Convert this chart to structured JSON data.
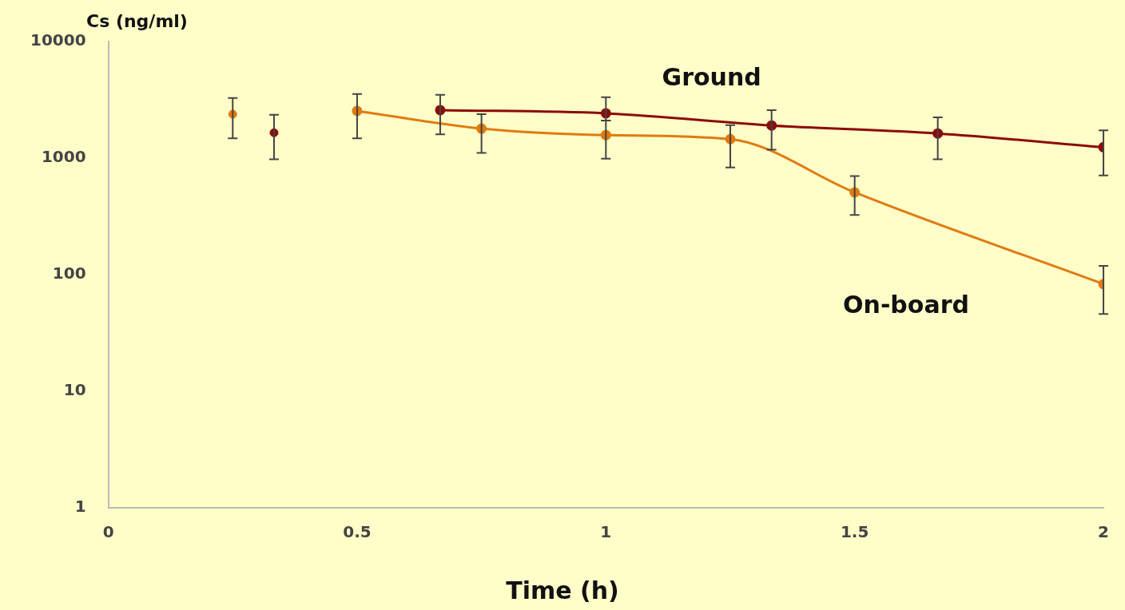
{
  "chart_data": {
    "type": "line",
    "xlabel": "Time (h)",
    "ylabel": "Cs (ng/ml)",
    "xlim": [
      0,
      2
    ],
    "xticks": [
      0,
      0.5,
      1,
      1.5,
      2
    ],
    "ylim": [
      1,
      10000
    ],
    "yticks": [
      1,
      10,
      100,
      1000,
      10000
    ],
    "log": "y",
    "grid": false,
    "legend": false,
    "marker": "circle",
    "line_style": "solid",
    "series": [
      {
        "name": "Ground",
        "color": "#8b0a0a",
        "x": [
          0.667,
          1,
          1.333,
          1.667,
          2
        ],
        "values": [
          2580,
          2420,
          1905,
          1625,
          1240
        ],
        "errors": [
          [
            1600,
            3490
          ],
          [
            2100,
            3330
          ],
          [
            1180,
            2580
          ],
          [
            975,
            2235
          ],
          [
            710,
            1730
          ]
        ]
      },
      {
        "name": "On-board",
        "color": "#e07b10",
        "x": [
          0.5,
          0.75,
          1,
          1.25,
          1.5,
          2
        ],
        "values": [
          2540,
          1790,
          1575,
          1455,
          508,
          83
        ],
        "errors": [
          [
            1480,
            3550
          ],
          [
            1110,
            2380
          ],
          [
            990,
            2100
          ],
          [
            830,
            1920
          ],
          [
            325,
            700
          ],
          [
            46,
            119
          ]
        ]
      },
      {
        "type": "scatter",
        "color": "#8b0a0a",
        "x": [
          0.333
        ],
        "values": [
          1650
        ],
        "errors": [
          [
            975,
            2350
          ]
        ]
      },
      {
        "type": "scatter",
        "color": "#e07b10",
        "x": [
          0.25
        ],
        "values": [
          2380
        ],
        "errors": [
          [
            1480,
            3280
          ]
        ]
      }
    ]
  }
}
